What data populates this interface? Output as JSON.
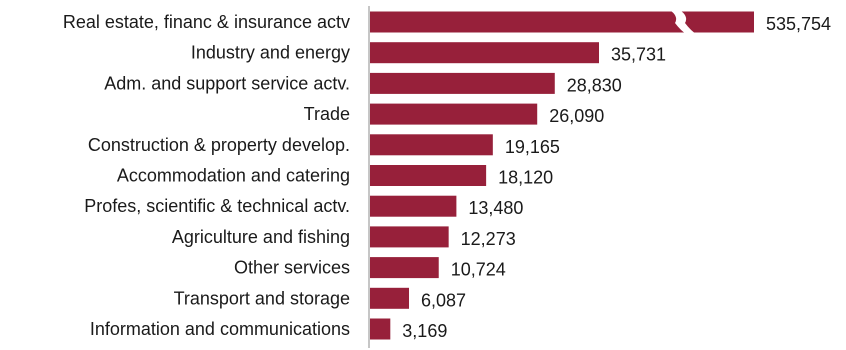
{
  "chart_data": {
    "type": "bar",
    "orientation": "horizontal",
    "categories": [
      "Real estate, financ & insurance actv",
      "Industry and energy",
      "Adm. and support service actv.",
      "Trade",
      "Construction & property develop.",
      "Accommodation and catering",
      "Profes, scientific & technical actv.",
      "Agriculture and fishing",
      "Other services",
      "Transport and storage",
      "Information and communications"
    ],
    "values": [
      535754,
      35731,
      28830,
      26090,
      19165,
      18120,
      13480,
      12273,
      10724,
      6087,
      3169
    ],
    "value_labels": [
      "535,754",
      "35,731",
      "28,830",
      "26,090",
      "19,165",
      "18,120",
      "13,480",
      "12,273",
      "10,724",
      "6,087",
      "3,169"
    ],
    "axis_break": true,
    "bar_color": "#97203a",
    "grid": false,
    "legend": "none"
  }
}
